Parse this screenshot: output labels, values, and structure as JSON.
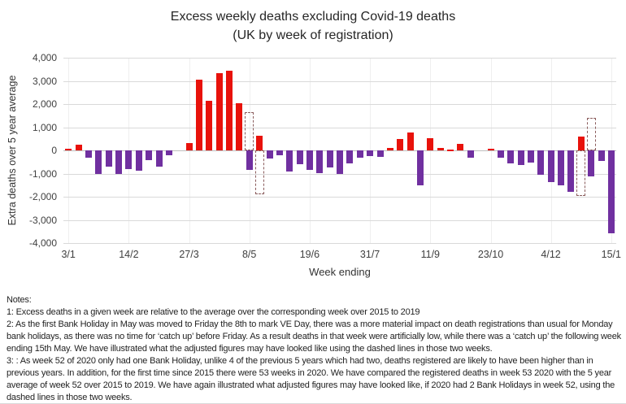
{
  "chart": {
    "title_line1": "Excess weekly deaths excluding Covid-19 deaths",
    "title_line2": "(UK by week of registration)",
    "y_axis_title": "Extra deaths over 5 year average",
    "x_axis_title": "Week ending"
  },
  "chart_data": {
    "type": "bar",
    "title": "Excess weekly deaths excluding Covid-19 deaths (UK by week of registration)",
    "xlabel": "Week ending",
    "ylabel": "Extra deaths over 5 year average",
    "ylim": [
      -4000,
      4000
    ],
    "grid": "horizontal",
    "legend": "none",
    "y_ticks": [
      {
        "label": "4,000",
        "value": 4000
      },
      {
        "label": "3,000",
        "value": 3000
      },
      {
        "label": "2,000",
        "value": 2000
      },
      {
        "label": "1,000",
        "value": 1000
      },
      {
        "label": "0",
        "value": 0
      },
      {
        "label": "-1,000",
        "value": -1000
      },
      {
        "label": "-2,000",
        "value": -2000
      },
      {
        "label": "-3,000",
        "value": -3000
      },
      {
        "label": "-4,000",
        "value": -4000
      }
    ],
    "x_ticks": [
      {
        "index": 1,
        "label": "3/1"
      },
      {
        "index": 7,
        "label": "14/2"
      },
      {
        "index": 13,
        "label": "27/3"
      },
      {
        "index": 19,
        "label": "8/5"
      },
      {
        "index": 25,
        "label": "19/6"
      },
      {
        "index": 31,
        "label": "31/7"
      },
      {
        "index": 37,
        "label": "11/9"
      },
      {
        "index": 43,
        "label": "23/10"
      },
      {
        "index": 49,
        "label": "4/12"
      },
      {
        "index": 55,
        "label": "15/1"
      }
    ],
    "values": [
      60,
      250,
      -300,
      -1000,
      -700,
      -1000,
      -820,
      -870,
      -420,
      -700,
      -200,
      0,
      330,
      3050,
      2150,
      3350,
      3450,
      2050,
      -850,
      640,
      -360,
      -200,
      -900,
      -600,
      -850,
      -970,
      -730,
      -1030,
      -550,
      -300,
      -240,
      -280,
      120,
      480,
      780,
      -1515,
      520,
      120,
      30,
      280,
      -300,
      0,
      80,
      -300,
      -560,
      -640,
      -540,
      -1050,
      -1360,
      -1500,
      -1800,
      600,
      -1120,
      -450,
      -3580
    ],
    "adjusted_dashed_bars": [
      {
        "index": 19,
        "value": 1650,
        "meaning": "adjusted figure, week ending 8/5"
      },
      {
        "index": 20,
        "value": -1900,
        "meaning": "adjusted figure, week ending 15/5"
      },
      {
        "index": 52,
        "value": -1950,
        "meaning": "adjusted figure, week 52 of 2020"
      },
      {
        "index": 53,
        "value": 1400,
        "meaning": "adjusted figure, week 53 of 2020"
      }
    ],
    "colors": {
      "positive_bar": "#e8120b",
      "negative_bar": "#7030a0",
      "dashed_outline": "#8a5c5c",
      "gridline": "#d9d9d9",
      "zero_line": "#bfbfbf"
    }
  },
  "notes": {
    "heading": "Notes:",
    "note1": "1: Excess deaths in a given week are relative to the average over the corresponding week over 2015 to 2019",
    "note2": "2: As the first Bank Holiday in May was moved to Friday the 8th to mark VE Day, there was a more material impact on death registrations than usual for Monday bank holidays, as there was no time for ‘catch up’ before Friday. As a result deaths in that week were artificially low, while there was a ‘catch up’ the following week ending 15th May. We have illustrated what the adjusted figures may have looked like using the dashed lines in those two weeks.",
    "note3": "3: : As week 52 of 2020 only had one Bank Holiday, unlike 4 of the previous 5 years which had two, deaths registered are likely to have been higher than in previous years. In addition, for the first time since 2015 there were 53 weeks in 2020. We have compared the registered deaths in week 53 2020 with the 5 year average of week 52 over 2015 to 2019. We have again illustrated what adjusted figures may have looked like, if 2020 had 2 Bank Holidays in week 52, using the dashed lines in those two weeks."
  }
}
